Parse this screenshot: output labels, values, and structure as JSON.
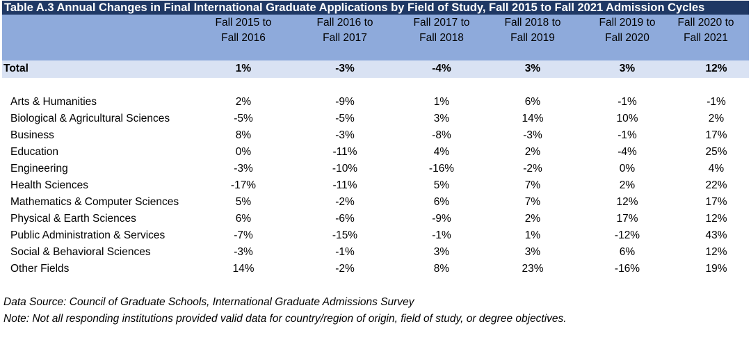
{
  "title": "Table A.3 Annual Changes in Final International Graduate Applications by Field of Study, Fall 2015 to Fall 2021 Admission Cycles",
  "columns": [
    {
      "line1": "Fall 2015 to",
      "line2": "Fall 2016"
    },
    {
      "line1": "Fall 2016 to",
      "line2": "Fall 2017"
    },
    {
      "line1": "Fall 2017 to",
      "line2": "Fall 2018"
    },
    {
      "line1": "Fall 2018 to",
      "line2": "Fall 2019"
    },
    {
      "line1": "Fall 2019 to",
      "line2": "Fall 2020"
    },
    {
      "line1": "Fall 2020 to",
      "line2": "Fall 2021"
    }
  ],
  "total": {
    "label": "Total",
    "values": [
      "1%",
      "-3%",
      "-4%",
      "3%",
      "3%",
      "12%"
    ]
  },
  "rows": [
    {
      "label": "Arts & Humanities",
      "values": [
        "2%",
        "-9%",
        "1%",
        "6%",
        "-1%",
        "-1%"
      ]
    },
    {
      "label": "Biological & Agricultural Sciences",
      "values": [
        "-5%",
        "-5%",
        "3%",
        "14%",
        "10%",
        "2%"
      ]
    },
    {
      "label": "Business",
      "values": [
        "8%",
        "-3%",
        "-8%",
        "-3%",
        "-1%",
        "17%"
      ]
    },
    {
      "label": "Education",
      "values": [
        "0%",
        "-11%",
        "4%",
        "2%",
        "-4%",
        "25%"
      ]
    },
    {
      "label": "Engineering",
      "values": [
        "-3%",
        "-10%",
        "-16%",
        "-2%",
        "0%",
        "4%"
      ]
    },
    {
      "label": "Health Sciences",
      "values": [
        "-17%",
        "-11%",
        "5%",
        "7%",
        "2%",
        "22%"
      ]
    },
    {
      "label": "Mathematics & Computer Sciences",
      "values": [
        "5%",
        "-2%",
        "6%",
        "7%",
        "12%",
        "17%"
      ]
    },
    {
      "label": "Physical & Earth Sciences",
      "values": [
        "6%",
        "-6%",
        "-9%",
        "2%",
        "17%",
        "12%"
      ]
    },
    {
      "label": "Public Administration & Services",
      "values": [
        "-7%",
        "-15%",
        "-1%",
        "1%",
        "-12%",
        "43%"
      ]
    },
    {
      "label": "Social & Behavioral Sciences",
      "values": [
        "-3%",
        "-1%",
        "3%",
        "3%",
        "6%",
        "12%"
      ]
    },
    {
      "label": "Other Fields",
      "values": [
        "14%",
        "-2%",
        "8%",
        "23%",
        "-16%",
        "19%"
      ]
    }
  ],
  "notes": {
    "source": "Data Source: Council of Graduate Schools, International Graduate Admissions Survey",
    "note": "Note: Not all responding institutions provided valid data for country/region of origin, field of study, or degree objectives."
  },
  "colors": {
    "title_bg": "#1f3864",
    "header_bg": "#8eaadb",
    "total_bg": "#d9e2f3"
  }
}
